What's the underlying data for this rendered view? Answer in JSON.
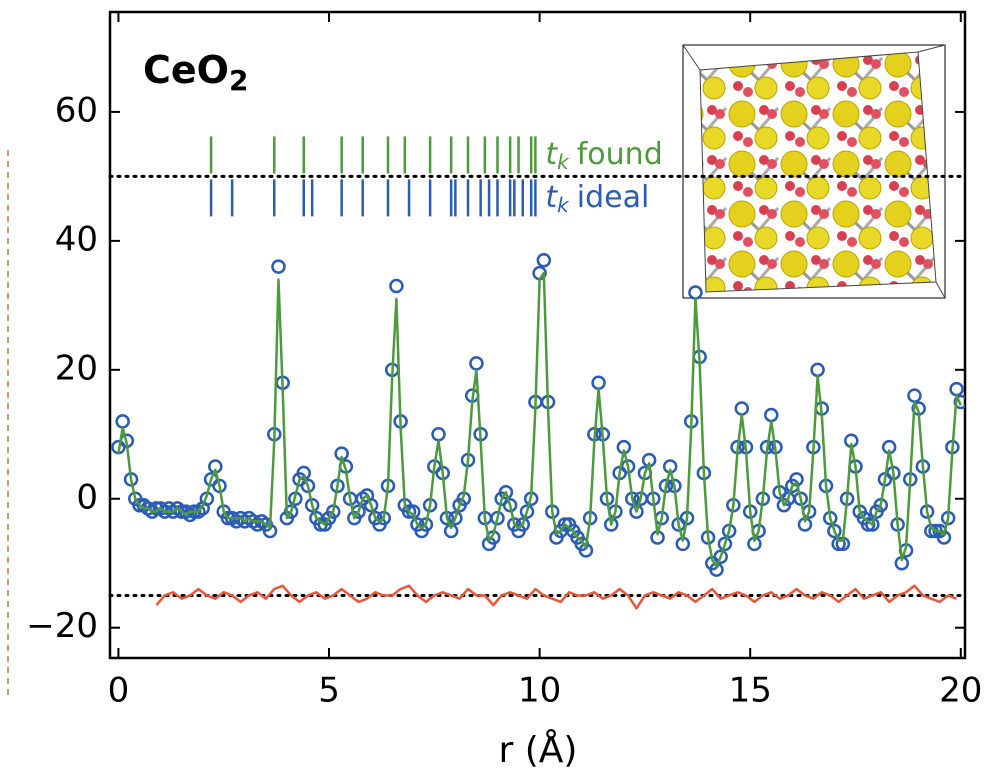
{
  "chart_data": {
    "type": "line",
    "title": "CeO",
    "title_sub": "2",
    "xlabel": "r (Å)",
    "xlim": [
      -0.2,
      20.1
    ],
    "ylim": [
      -24.7,
      75.5
    ],
    "xticks": [
      0,
      5,
      10,
      15,
      20
    ],
    "yticks": [
      {
        "value": -20,
        "label": "−20"
      },
      0,
      20,
      40,
      60
    ],
    "hlines": [
      50,
      -15
    ],
    "x": [
      0.0,
      0.1,
      0.2,
      0.3,
      0.4,
      0.5,
      0.6,
      0.7,
      0.8,
      0.9,
      1.0,
      1.1,
      1.2,
      1.3,
      1.4,
      1.5,
      1.6,
      1.7,
      1.8,
      1.9,
      2.0,
      2.1,
      2.2,
      2.3,
      2.4,
      2.5,
      2.6,
      2.7,
      2.8,
      2.9,
      3.0,
      3.1,
      3.2,
      3.3,
      3.4,
      3.5,
      3.6,
      3.7,
      3.8,
      3.9,
      4.0,
      4.1,
      4.2,
      4.3,
      4.4,
      4.5,
      4.6,
      4.7,
      4.8,
      4.9,
      5.0,
      5.1,
      5.2,
      5.3,
      5.4,
      5.5,
      5.6,
      5.7,
      5.8,
      5.9,
      6.0,
      6.1,
      6.2,
      6.3,
      6.4,
      6.5,
      6.6,
      6.7,
      6.8,
      6.9,
      7.0,
      7.1,
      7.2,
      7.3,
      7.4,
      7.5,
      7.6,
      7.7,
      7.8,
      7.9,
      8.0,
      8.1,
      8.2,
      8.3,
      8.4,
      8.5,
      8.6,
      8.7,
      8.8,
      8.9,
      9.0,
      9.1,
      9.2,
      9.3,
      9.4,
      9.5,
      9.6,
      9.7,
      9.8,
      9.9,
      10.0,
      10.1,
      10.2,
      10.3,
      10.4,
      10.5,
      10.6,
      10.7,
      10.8,
      10.9,
      11.0,
      11.1,
      11.2,
      11.3,
      11.4,
      11.5,
      11.6,
      11.7,
      11.8,
      11.9,
      12.0,
      12.1,
      12.2,
      12.3,
      12.4,
      12.5,
      12.6,
      12.7,
      12.8,
      12.9,
      13.0,
      13.1,
      13.2,
      13.3,
      13.4,
      13.5,
      13.6,
      13.7,
      13.8,
      13.9,
      14.0,
      14.1,
      14.2,
      14.3,
      14.4,
      14.5,
      14.6,
      14.7,
      14.8,
      14.9,
      15.0,
      15.1,
      15.2,
      15.3,
      15.4,
      15.5,
      15.6,
      15.7,
      15.8,
      15.9,
      16.0,
      16.1,
      16.2,
      16.3,
      16.4,
      16.5,
      16.6,
      16.7,
      16.8,
      16.9,
      17.0,
      17.1,
      17.2,
      17.3,
      17.4,
      17.5,
      17.6,
      17.7,
      17.8,
      17.9,
      18.0,
      18.1,
      18.2,
      18.3,
      18.4,
      18.5,
      18.6,
      18.7,
      18.8,
      18.9,
      19.0,
      19.1,
      19.2,
      19.3,
      19.4,
      19.5,
      19.6,
      19.7,
      19.8,
      19.9,
      20.0
    ],
    "series": [
      {
        "style": "markers",
        "color": "#2a5cb4",
        "values": [
          8,
          12,
          9,
          3,
          0,
          -1,
          -1,
          -1.5,
          -2,
          -1.5,
          -1.5,
          -2,
          -1.5,
          -2,
          -1.5,
          -2,
          -2,
          -2.5,
          -2,
          -2,
          -1.5,
          0,
          3,
          5,
          2,
          -2,
          -3,
          -3,
          -3.5,
          -3,
          -3.5,
          -3,
          -3.5,
          -4,
          -3.5,
          -4,
          -5,
          10,
          36,
          18,
          -3,
          -2,
          0,
          3,
          4,
          2,
          -1,
          -3,
          -4,
          -4,
          -3,
          -2,
          2,
          7,
          5,
          0,
          -3,
          -2,
          0,
          0.5,
          -1,
          -3,
          -4,
          -3,
          2,
          20,
          33,
          12,
          -1,
          -2,
          -2,
          -4,
          -5,
          -4,
          -1,
          5,
          10,
          4,
          -3,
          -5,
          -3,
          -1,
          0,
          6,
          16,
          21,
          10,
          -3,
          -7,
          -6,
          -3,
          0,
          1,
          -1,
          -4,
          -5,
          -4,
          -2,
          0,
          15,
          35,
          37,
          15,
          -2,
          -6,
          -5,
          -4,
          -4,
          -5,
          -6,
          -7,
          -8,
          -3,
          10,
          18,
          10,
          0,
          -4,
          -2,
          4,
          8,
          5,
          0,
          -2,
          0,
          4,
          6,
          0,
          -6,
          -3,
          2,
          5,
          2,
          -4,
          -7,
          -3,
          12,
          32,
          22,
          4,
          -6,
          -10,
          -11,
          -9,
          -7,
          -5,
          -1,
          8,
          14,
          8,
          -2,
          -7,
          -5,
          0,
          8,
          13,
          8,
          1,
          -1,
          0,
          2,
          3,
          0,
          -4,
          -2,
          8,
          20,
          14,
          2,
          -3,
          -5,
          -7,
          -7,
          0,
          9,
          5,
          -2,
          -3,
          -4,
          -4,
          -2,
          -1,
          3,
          8,
          4,
          -4,
          -10,
          -8,
          3,
          16,
          14,
          5,
          -2,
          -5,
          -5,
          -5,
          -6,
          -3,
          8,
          17,
          15
        ]
      },
      {
        "style": "line",
        "color": "#4d9a3c",
        "values": [
          7,
          11,
          8.5,
          3,
          0,
          -1,
          -1.5,
          -1.5,
          -2,
          -2,
          -1.5,
          -2,
          -2,
          -2,
          -1.5,
          -2,
          -2.5,
          -2,
          -2,
          -2,
          -1,
          0.5,
          3,
          4.5,
          2,
          -2,
          -3,
          -3,
          -3,
          -3,
          -3.5,
          -3,
          -3.5,
          -3.5,
          -3.5,
          -4,
          -4.5,
          9,
          34,
          17,
          -3,
          -2,
          0.5,
          3,
          3.5,
          2,
          -1,
          -3,
          -3.5,
          -4,
          -3,
          -2,
          2,
          6.5,
          4.5,
          0,
          -3,
          -2,
          0,
          0.5,
          -1,
          -3,
          -3.5,
          -3,
          2,
          19,
          31,
          11,
          -1,
          -2,
          -2.5,
          -4,
          -4.5,
          -4,
          -1,
          5,
          9,
          4,
          -3,
          -4.5,
          -3,
          -1,
          0.5,
          6,
          15,
          20,
          9,
          -3,
          -6.5,
          -5.5,
          -3,
          0,
          1,
          -1,
          -4,
          -4.5,
          -4,
          -2,
          0.5,
          14,
          34,
          35,
          14,
          -2,
          -5.5,
          -5,
          -4,
          -4.5,
          -5,
          -6,
          -6.5,
          -7.5,
          -3,
          9,
          17,
          9.5,
          0,
          -4,
          -2,
          4,
          7.5,
          5,
          0,
          -2,
          0,
          4,
          5.5,
          0,
          -5.5,
          -3,
          2,
          4.5,
          2,
          -4,
          -6.5,
          -3,
          11,
          31,
          21,
          4,
          -6,
          -9.5,
          -10.5,
          -9,
          -7,
          -5,
          -1,
          7.5,
          13,
          7.5,
          -2,
          -6.5,
          -5,
          0,
          7.5,
          12,
          7.5,
          1,
          -1,
          0,
          2,
          2.5,
          0,
          -3.5,
          -2,
          7.5,
          19,
          13,
          2,
          -3,
          -5,
          -6.5,
          -6.5,
          0,
          8.5,
          5,
          -2,
          -3,
          -3.5,
          -4,
          -2,
          -1,
          3,
          7.5,
          4,
          -4,
          -9.5,
          -7.5,
          3,
          15,
          13.5,
          5,
          -2,
          -4.5,
          -5,
          -5,
          -5.5,
          -3,
          7.5,
          16,
          14.5
        ]
      },
      {
        "style": "line",
        "color": "#e5583c",
        "x": [
          0.9,
          1.1,
          1.3,
          1.5,
          1.7,
          1.9,
          2.1,
          2.3,
          2.5,
          2.7,
          2.9,
          3.1,
          3.3,
          3.5,
          3.7,
          3.9,
          4.1,
          4.3,
          4.5,
          4.7,
          4.9,
          5.1,
          5.3,
          5.5,
          5.7,
          5.9,
          6.1,
          6.3,
          6.5,
          6.7,
          6.9,
          7.1,
          7.3,
          7.5,
          7.7,
          7.9,
          8.1,
          8.3,
          8.5,
          8.7,
          8.9,
          9.1,
          9.3,
          9.5,
          9.7,
          9.9,
          10.1,
          10.3,
          10.5,
          10.7,
          10.9,
          11.1,
          11.3,
          11.5,
          11.7,
          11.9,
          12.1,
          12.3,
          12.5,
          12.7,
          12.9,
          13.1,
          13.3,
          13.5,
          13.7,
          13.9,
          14.1,
          14.3,
          14.5,
          14.7,
          14.9,
          15.1,
          15.3,
          15.5,
          15.7,
          15.9,
          16.1,
          16.3,
          16.5,
          16.7,
          16.9,
          17.1,
          17.3,
          17.5,
          17.7,
          17.9,
          18.1,
          18.3,
          18.5,
          18.7,
          18.9,
          19.1,
          19.3,
          19.5,
          19.7,
          19.9
        ],
        "values": [
          -16.5,
          -15,
          -14.5,
          -15.5,
          -15,
          -14,
          -15,
          -15.5,
          -14.5,
          -15,
          -16,
          -15,
          -14.5,
          -15.5,
          -14,
          -13.5,
          -15,
          -16,
          -15,
          -14.5,
          -15.5,
          -15,
          -14,
          -15,
          -16,
          -15.5,
          -14.5,
          -15,
          -15,
          -14,
          -13.5,
          -15,
          -16,
          -15,
          -14.5,
          -15,
          -15.5,
          -14,
          -15,
          -15,
          -16.5,
          -15,
          -14.5,
          -15,
          -15.5,
          -14,
          -15,
          -15.5,
          -16,
          -14.5,
          -15,
          -15,
          -14.5,
          -15.5,
          -15,
          -14,
          -15,
          -17,
          -15,
          -14.5,
          -15,
          -15.5,
          -14.5,
          -15,
          -16,
          -15,
          -14,
          -15.5,
          -15,
          -14.5,
          -15,
          -16,
          -15,
          -14.5,
          -15.5,
          -15,
          -14,
          -15,
          -15.5,
          -14.5,
          -15,
          -16,
          -15,
          -14,
          -15.5,
          -15,
          -14.5,
          -16,
          -15,
          -14.5,
          -13.5,
          -15,
          -15.5,
          -16,
          -15,
          -15.5
        ]
      }
    ],
    "tick_symbol": "t",
    "tick_symbol_sub": "k",
    "tick_rows": [
      {
        "name": "found",
        "color": "#4d9a3c",
        "positions": [
          2.2,
          3.7,
          4.4,
          5.3,
          5.8,
          6.4,
          6.8,
          7.4,
          7.9,
          8.3,
          8.7,
          9.0,
          9.3,
          9.5,
          9.8,
          9.9
        ]
      },
      {
        "name": "ideal",
        "color": "#2a5cb4",
        "positions": [
          2.2,
          2.7,
          3.7,
          4.4,
          4.6,
          5.3,
          5.8,
          6.4,
          6.9,
          7.4,
          7.9,
          8.0,
          8.3,
          8.6,
          8.8,
          9.0,
          9.3,
          9.4,
          9.6,
          9.8,
          9.9
        ]
      }
    ]
  }
}
